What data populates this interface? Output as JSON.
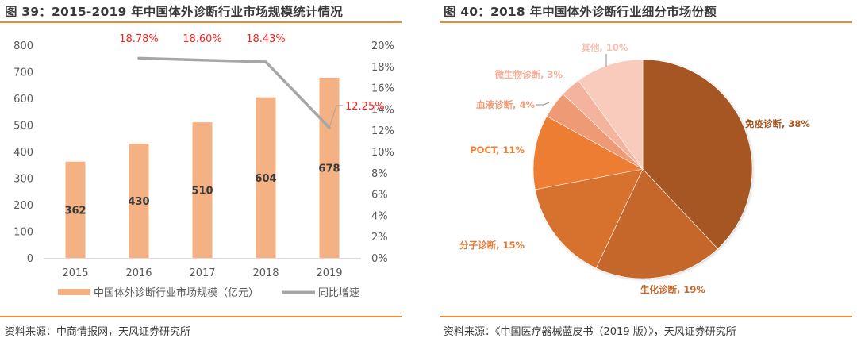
{
  "left": {
    "title": "图 39：2015-2019 年中国体外诊断行业市场规模统计情况",
    "source": "资料来源：中商情报网，天风证券研究所"
  },
  "right": {
    "title": "图 40：2018 年中国体外诊断行业细分市场份额",
    "source": "资料来源：《中国医疗器械蓝皮书（2019 版）》，天风证券研究所"
  },
  "colors": {
    "accent_rule": "#ee8a34",
    "bar": "#f4b183",
    "line": "#a6a6a6",
    "line_label": "#ff1e1e"
  },
  "chart_data": [
    {
      "type": "bar",
      "title": "2015-2019 年中国体外诊断行业市场规模统计情况",
      "categories": [
        "2015",
        "2016",
        "2017",
        "2018",
        "2019"
      ],
      "series": [
        {
          "name": "中国体外诊断行业市场规模（亿元）",
          "type": "bar",
          "axis": "left",
          "values": [
            362,
            430,
            510,
            604,
            678
          ],
          "data_labels": [
            "362",
            "430",
            "510",
            "604",
            "678"
          ]
        },
        {
          "name": "同比增速",
          "type": "line",
          "axis": "right",
          "x": [
            "2016",
            "2017",
            "2018",
            "2019"
          ],
          "values": [
            18.78,
            18.6,
            18.43,
            12.25
          ],
          "data_labels": [
            "18.78%",
            "18.60%",
            "18.43%",
            "12.25%"
          ]
        }
      ],
      "y_left": {
        "range": [
          0,
          800
        ],
        "ticks": [
          "0",
          "100",
          "200",
          "300",
          "400",
          "500",
          "600",
          "700",
          "800"
        ]
      },
      "y_right": {
        "range": [
          0,
          20
        ],
        "ticks": [
          "0%",
          "2%",
          "4%",
          "6%",
          "8%",
          "10%",
          "12%",
          "14%",
          "16%",
          "18%",
          "20%"
        ]
      },
      "xlabel": "",
      "ylabel": "",
      "grid": false,
      "legend": {
        "placement": "bottom",
        "items": [
          {
            "label": "中国体外诊断行业市场规模（亿元）",
            "kind": "bar"
          },
          {
            "label": "同比增速",
            "kind": "line"
          }
        ]
      }
    },
    {
      "type": "pie",
      "title": "2018 年中国体外诊断行业细分市场份额",
      "start": "top",
      "direction": "clockwise",
      "slices": [
        {
          "label": "免疫诊断",
          "value": 38,
          "text": "免疫诊断, 38%",
          "color": "#a55722",
          "label_color": "#a55722"
        },
        {
          "label": "生化诊断",
          "value": 19,
          "text": "生化诊断, 19%",
          "color": "#c5662a",
          "label_color": "#c5662a"
        },
        {
          "label": "分子诊断",
          "value": 15,
          "text": "分子诊断, 15%",
          "color": "#d7722e",
          "label_color": "#de7a3a"
        },
        {
          "label": "POCT",
          "value": 11,
          "text": "POCT, 11%",
          "color": "#ed7d31",
          "label_color": "#ed7d31"
        },
        {
          "label": "血液诊断",
          "value": 4,
          "text": "血液诊断, 4%",
          "color": "#ee9a74",
          "label_color": "#f09a76"
        },
        {
          "label": "微生物诊断",
          "value": 3,
          "text": "微生物诊断, 3%",
          "color": "#f3b39c",
          "label_color": "#f5b09a"
        },
        {
          "label": "其他",
          "value": 10,
          "text": "其他, 10%",
          "color": "#f8cbbd",
          "label_color": "#f6c0b0"
        }
      ],
      "legend": {
        "placement": "none"
      }
    }
  ]
}
